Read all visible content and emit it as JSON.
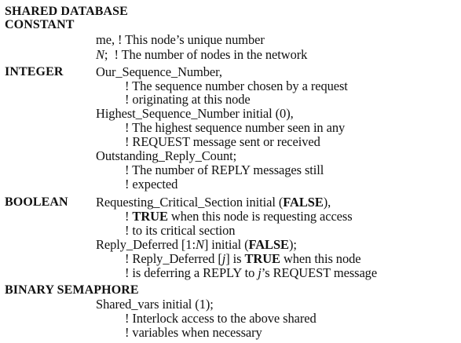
{
  "heading": {
    "line1": "SHARED DATABASE",
    "line2": "CONSTANT"
  },
  "constant": {
    "me_name": "me,",
    "me_comment": "! This node’s unique number",
    "n_name": "N",
    "n_punct": ";",
    "n_comment": "! The number of nodes in the network"
  },
  "integer": {
    "keyword": "INTEGER",
    "our_seq": "Our_Sequence_Number,",
    "our_seq_c1": "! The sequence number chosen by a request",
    "our_seq_c2": "! originating at this node",
    "highest_seq": "Highest_Sequence_Number initial (0),",
    "highest_seq_c1": "! The highest sequence number seen in any",
    "highest_seq_c2": "! REQUEST message sent or received",
    "outstanding": "Outstanding_Reply_Count;",
    "outstanding_c1": "! The number of REPLY messages still",
    "outstanding_c2": "! expected"
  },
  "boolean": {
    "keyword": "BOOLEAN",
    "req_cs_pre": "Requesting_Critical_Section initial (",
    "req_cs_false": "FALSE",
    "req_cs_post": "),",
    "req_cs_c1_pre": "! ",
    "req_cs_c1_true": "TRUE",
    "req_cs_c1_post": " when this node is requesting access",
    "req_cs_c2": "! to its critical section",
    "rd_pre": "Reply_Deferred [1:",
    "rd_n": "N",
    "rd_mid": "] initial (",
    "rd_false": "FALSE",
    "rd_post": ");",
    "rd_c1_pre": "! Reply_Deferred [",
    "rd_c1_j": "j",
    "rd_c1_mid": "] is ",
    "rd_c1_true": "TRUE",
    "rd_c1_post": " when this node",
    "rd_c2_pre": "! is deferring a REPLY to ",
    "rd_c2_j": "j",
    "rd_c2_post": "’s REQUEST message"
  },
  "semaphore": {
    "keyword": "BINARY SEMAPHORE",
    "shared_vars": "Shared_vars initial (1);",
    "sv_c1": "! Interlock access to the above shared",
    "sv_c2": "! variables when necessary"
  }
}
